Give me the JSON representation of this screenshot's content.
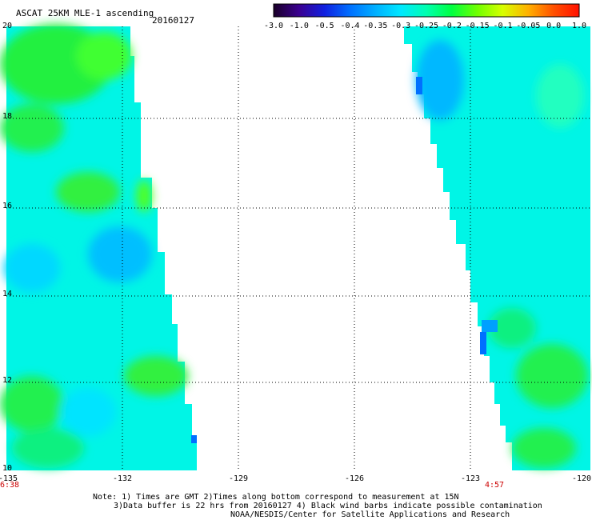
{
  "header": {
    "title": "ASCAT 25KM MLE-1 ascending",
    "date": "20160127"
  },
  "colorbar": {
    "labels": [
      "-3.0",
      "-1.0",
      "-0.5",
      "-0.4",
      "-0.35",
      "-0.3",
      "-0.25",
      "-0.2",
      "-0.15",
      "-0.1",
      "-0.05",
      "0.0",
      "1.0"
    ],
    "colors": [
      "#1a0028",
      "#3a0090",
      "#1020e0",
      "#0070ff",
      "#00b0ff",
      "#00e8ff",
      "#00ffb0",
      "#00ff40",
      "#70ff00",
      "#d8ff00",
      "#ffb000",
      "#ff5000",
      "#ff1000"
    ]
  },
  "map": {
    "lat_labels": [
      "20",
      "18",
      "16",
      "14",
      "12",
      "10"
    ],
    "lon_labels": [
      "-135",
      "-132",
      "-129",
      "-126",
      "-123",
      "-120"
    ],
    "time_left": "6:38",
    "time_right": "4:57",
    "swath_colors": {
      "cyan": "#00f5e6",
      "green": "#10f060",
      "lightgreen": "#30ff40",
      "blue": "#00c8ff",
      "deepblue": "#0070ff"
    }
  },
  "footer": {
    "line1": "Note: 1) Times are GMT 2)Times along bottom correspond to measurement at 15N",
    "line2": "3)Data buffer is 22 hrs from 20160127 4) Black wind barbs indicate possible contamination",
    "line3": "NOAA/NESDIS/Center for Satellite Applications and Research"
  }
}
